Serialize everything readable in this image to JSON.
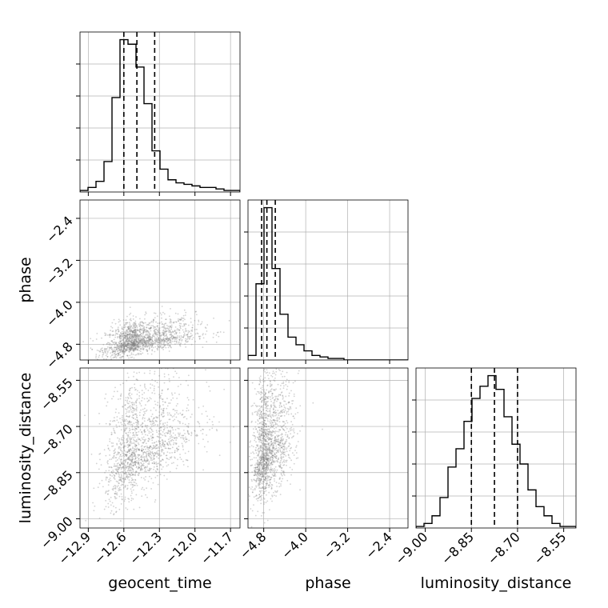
{
  "chart_data": {
    "type": "corner",
    "parameters": [
      "geocent_time",
      "phase",
      "luminosity_distance"
    ],
    "axis_labels": {
      "x": [
        "geocent_time",
        "phase",
        "luminosity_distance"
      ],
      "y": [
        "",
        "phase",
        "luminosity_distance"
      ]
    },
    "ranges": {
      "geocent_time": [
        -12.97,
        -11.62
      ],
      "phase": [
        -5.1,
        -2.05
      ],
      "luminosity_distance": [
        -9.03,
        -8.51
      ]
    },
    "ticks": {
      "geocent_time": [
        -12.9,
        -12.6,
        -12.3,
        -12.0,
        -11.7
      ],
      "phase": [
        -4.8,
        -4.0,
        -3.2,
        -2.4
      ],
      "luminosity_distance": [
        -9.0,
        -8.85,
        -8.7,
        -8.55
      ]
    },
    "tick_labels": {
      "geocent_time": [
        "−12.9",
        "−12.6",
        "−12.3",
        "−12.0",
        "−11.7"
      ],
      "phase": [
        "−4.8",
        "−4.0",
        "−3.2",
        "−2.4"
      ],
      "luminosity_distance": [
        "−9.00",
        "−8.85",
        "−8.70",
        "−8.55"
      ]
    },
    "quantiles": {
      "geocent_time": [
        -12.6,
        -12.49,
        -12.34
      ],
      "phase": [
        -4.84,
        -4.74,
        -4.58
      ],
      "luminosity_distance": [
        -8.85,
        -8.775,
        -8.7
      ]
    },
    "histograms": {
      "geocent_time": {
        "bins": [
          -12.97,
          -11.62
        ],
        "counts": [
          1,
          3,
          7,
          20,
          62,
          100,
          97,
          82,
          58,
          27,
          15,
          8,
          6,
          5,
          4,
          3,
          3,
          2,
          1,
          1
        ]
      },
      "phase": {
        "bins": [
          -5.1,
          -2.05
        ],
        "counts": [
          3,
          50,
          100,
          60,
          30,
          15,
          10,
          6,
          3,
          2,
          1,
          1,
          0,
          0,
          0,
          0,
          0,
          0,
          0,
          0
        ]
      },
      "luminosity_distance": {
        "bins": [
          -9.03,
          -8.51
        ],
        "counts": [
          1,
          3,
          8,
          20,
          40,
          52,
          70,
          85,
          93,
          100,
          91,
          73,
          55,
          42,
          25,
          14,
          8,
          3,
          1,
          1
        ]
      }
    },
    "correlations": {
      "phase|geocent_time": 0.55,
      "luminosity_distance|geocent_time": 0.55,
      "luminosity_distance|phase": 0.4
    },
    "grid": true,
    "colors": {
      "line": "#000000",
      "points": "#7f7f7f",
      "grid": "#b0b0b0"
    }
  }
}
